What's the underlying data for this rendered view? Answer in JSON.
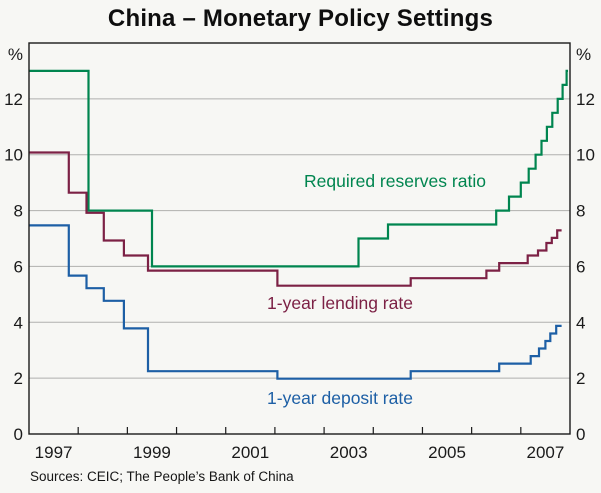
{
  "page": {
    "title": "China – Monetary Policy Settings",
    "sources": "Sources: CEIC; The People’s Bank of China"
  },
  "colors": {
    "reserves": "#00854f",
    "lending": "#7c2145",
    "deposit": "#1d5fa5",
    "axis": "#1a1a1a",
    "grid": "#b0b0ae",
    "background": "#f7f7f4",
    "text": "#1a1a1a"
  },
  "chart_data": {
    "type": "line",
    "line_style": "step",
    "title": "China – Monetary Policy Settings",
    "unit_left": "%",
    "unit_right": "%",
    "x_range": [
      1997,
      2008
    ],
    "y_range": [
      0,
      14
    ],
    "y_ticks": [
      0,
      2,
      4,
      6,
      8,
      10,
      12
    ],
    "x_boundary_tick_years": [
      1998,
      1999,
      2000,
      2001,
      2002,
      2003,
      2004,
      2005,
      2006,
      2007
    ],
    "x_label_years": [
      1997,
      1999,
      2001,
      2003,
      2005,
      2007
    ],
    "grid": "horizontal",
    "legend": "inline-labels",
    "series": [
      {
        "name": "required-reserves-ratio",
        "label": "Required reserves ratio",
        "color_key": "reserves",
        "end_x": 2007.96,
        "steps": [
          [
            1997.0,
            13.0
          ],
          [
            1998.21,
            8.0
          ],
          [
            1999.5,
            6.0
          ],
          [
            2003.7,
            7.0
          ],
          [
            2004.3,
            7.5
          ],
          [
            2006.5,
            8.0
          ],
          [
            2006.76,
            8.5
          ],
          [
            2007.0,
            9.0
          ],
          [
            2007.16,
            9.5
          ],
          [
            2007.3,
            10.0
          ],
          [
            2007.42,
            10.5
          ],
          [
            2007.53,
            11.0
          ],
          [
            2007.64,
            11.5
          ],
          [
            2007.75,
            12.0
          ],
          [
            2007.85,
            12.5
          ],
          [
            2007.93,
            13.0
          ]
        ]
      },
      {
        "name": "one-year-lending-rate",
        "label": "1-year lending rate",
        "color_key": "lending",
        "end_x": 2007.83,
        "steps": [
          [
            1997.0,
            10.08
          ],
          [
            1997.81,
            8.64
          ],
          [
            1998.17,
            7.92
          ],
          [
            1998.52,
            6.93
          ],
          [
            1998.93,
            6.39
          ],
          [
            1999.42,
            5.85
          ],
          [
            2002.05,
            5.31
          ],
          [
            2004.76,
            5.58
          ],
          [
            2006.3,
            5.85
          ],
          [
            2006.56,
            6.12
          ],
          [
            2007.14,
            6.39
          ],
          [
            2007.35,
            6.57
          ],
          [
            2007.52,
            6.84
          ],
          [
            2007.63,
            7.02
          ],
          [
            2007.74,
            7.29
          ]
        ]
      },
      {
        "name": "one-year-deposit-rate",
        "label": "1-year deposit rate",
        "color_key": "deposit",
        "end_x": 2007.83,
        "steps": [
          [
            1997.0,
            7.47
          ],
          [
            1997.81,
            5.67
          ],
          [
            1998.17,
            5.22
          ],
          [
            1998.52,
            4.77
          ],
          [
            1998.93,
            3.78
          ],
          [
            1999.42,
            2.25
          ],
          [
            2002.05,
            1.98
          ],
          [
            2004.76,
            2.25
          ],
          [
            2006.56,
            2.52
          ],
          [
            2007.2,
            2.79
          ],
          [
            2007.37,
            3.06
          ],
          [
            2007.5,
            3.33
          ],
          [
            2007.6,
            3.6
          ],
          [
            2007.72,
            3.87
          ]
        ]
      }
    ]
  }
}
